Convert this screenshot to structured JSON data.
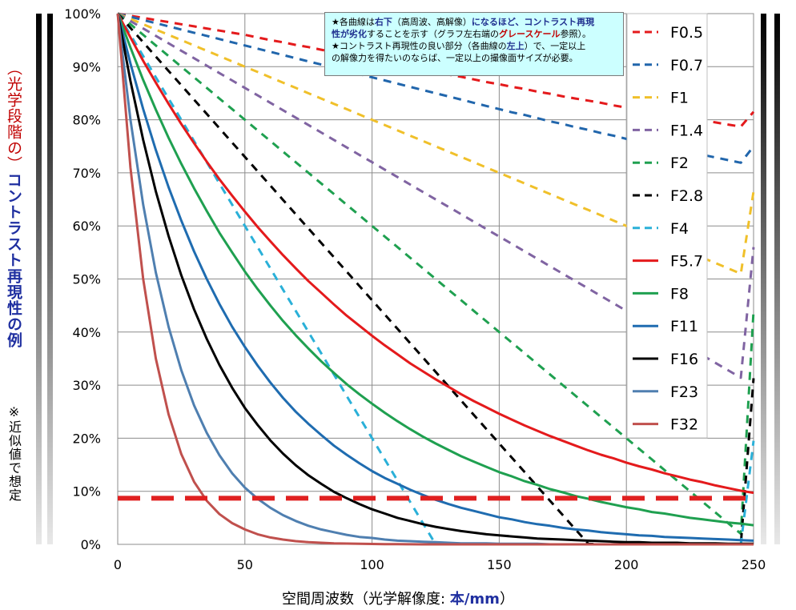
{
  "chart_data": {
    "type": "line",
    "title": "",
    "xlabel_main": "空間周波数",
    "xlabel_paren_open": "（光学解像度: ",
    "xlabel_unit": "本/mm",
    "xlabel_paren_close": "）",
    "ylabel_red": "（光学段階の）",
    "ylabel_blue": "コントラスト再現性の例",
    "ylabel_note": "※近似値で想定",
    "xlim": [
      0,
      250
    ],
    "ylim": [
      0,
      100
    ],
    "x_ticks": [
      "0",
      "50",
      "100",
      "150",
      "200",
      "250"
    ],
    "y_ticks": [
      "0%",
      "10%",
      "20%",
      "30%",
      "40%",
      "50%",
      "60%",
      "70%",
      "80%",
      "90%",
      "100%"
    ],
    "grid": true,
    "legend_position": "right",
    "threshold": {
      "y": 8.7,
      "color": "#e02020"
    },
    "note": {
      "line1_a": "★各曲線は",
      "line1_b": "右下",
      "line1_c": "（高周波、高解像）",
      "line1_d": "になるほど、コントラスト再現",
      "line2_a": "性が劣化",
      "line2_b": "することを示す（グラフ左右端の",
      "line2_c": "グレースケール",
      "line2_d": "参照）。",
      "line3_a": "★コントラスト再現性の良い部分（各曲線の",
      "line3_b": "左上",
      "line3_c": "）で、一定以上",
      "line4": "の解像力を得たいのならば、一定以上の撮像面サイズが必要。"
    },
    "x": [
      0,
      5,
      10,
      15,
      20,
      25,
      30,
      35,
      40,
      45,
      50,
      55,
      60,
      65,
      70,
      75,
      80,
      85,
      90,
      95,
      100,
      105,
      110,
      115,
      120,
      125,
      130,
      135,
      140,
      145,
      150,
      155,
      160,
      165,
      170,
      175,
      180,
      185,
      190,
      195,
      200,
      205,
      210,
      215,
      220,
      225,
      230,
      235,
      240,
      245,
      250
    ],
    "series": [
      {
        "name": "F0.5",
        "color": "#e41a1c",
        "dash": true,
        "values": [
          100,
          99.6,
          99.2,
          98.8,
          98.4,
          98.0,
          97.6,
          97.2,
          96.8,
          96.4,
          96.0,
          95.5,
          95.0,
          94.6,
          94.1,
          93.7,
          93.2,
          92.7,
          92.3,
          91.8,
          91.3,
          90.9,
          90.4,
          89.9,
          89.4,
          89.0,
          88.5,
          88.1,
          87.6,
          87.1,
          86.7,
          86.2,
          85.8,
          85.3,
          84.9,
          84.4,
          84.0,
          83.6,
          83.2,
          82.7,
          82.3,
          81.9,
          81.5,
          81.1,
          80.7,
          80.3,
          79.9,
          79.5,
          79.1,
          78.7,
          81.5
        ]
      },
      {
        "name": "F0.7",
        "color": "#2166ac",
        "dash": true,
        "values": [
          100,
          99.4,
          98.8,
          98.2,
          97.6,
          97.0,
          96.4,
          95.8,
          95.2,
          94.6,
          94.0,
          93.4,
          92.8,
          92.2,
          91.6,
          91.0,
          90.4,
          89.8,
          89.2,
          88.6,
          88.0,
          87.4,
          86.8,
          86.2,
          85.6,
          85.0,
          84.4,
          83.8,
          83.2,
          82.6,
          82.0,
          81.4,
          80.9,
          80.3,
          79.7,
          79.2,
          78.6,
          78.1,
          77.5,
          77.0,
          76.4,
          75.9,
          75.4,
          74.9,
          74.4,
          73.9,
          73.4,
          72.9,
          72.4,
          71.9,
          75.0
        ]
      },
      {
        "name": "F1",
        "color": "#f0c02a",
        "dash": true,
        "values": [
          100,
          99.0,
          98.0,
          97.0,
          96.0,
          95.0,
          94.0,
          93.0,
          92.0,
          91.0,
          90.0,
          89.0,
          88.0,
          87.0,
          86.0,
          85.0,
          84.0,
          83.0,
          82.0,
          81.0,
          80.0,
          79.0,
          78.0,
          77.0,
          76.0,
          75.0,
          74.0,
          73.0,
          72.0,
          71.0,
          70.0,
          69.0,
          68.0,
          67.0,
          66.0,
          65.0,
          64.0,
          63.0,
          62.0,
          61.0,
          60.0,
          59.0,
          58.0,
          57.0,
          56.0,
          55.0,
          54.0,
          53.0,
          52.0,
          51.0,
          66.5
        ]
      },
      {
        "name": "F1.4",
        "color": "#8064a2",
        "dash": true,
        "values": [
          100,
          98.6,
          97.2,
          95.8,
          94.4,
          93.0,
          91.6,
          90.2,
          88.8,
          87.4,
          86.0,
          84.6,
          83.2,
          81.8,
          80.4,
          79.0,
          77.6,
          76.2,
          74.8,
          73.4,
          72.0,
          70.6,
          69.2,
          67.8,
          66.4,
          65.0,
          63.6,
          62.2,
          60.8,
          59.4,
          58.0,
          56.6,
          55.2,
          53.8,
          52.4,
          51.0,
          49.6,
          48.2,
          46.8,
          45.4,
          44.0,
          42.6,
          41.2,
          39.8,
          38.4,
          37.0,
          35.6,
          34.2,
          32.8,
          31.4,
          56.0
        ]
      },
      {
        "name": "F2",
        "color": "#1fa050",
        "dash": true,
        "values": [
          100,
          98.0,
          96.0,
          94.0,
          92.0,
          90.0,
          88.0,
          86.0,
          84.0,
          82.0,
          80.0,
          78.0,
          76.0,
          74.0,
          72.0,
          70.0,
          68.0,
          66.0,
          64.0,
          62.0,
          60.0,
          58.0,
          56.0,
          54.0,
          52.0,
          50.0,
          48.0,
          46.0,
          44.0,
          42.0,
          40.0,
          38.0,
          36.0,
          34.0,
          32.0,
          30.0,
          28.0,
          26.0,
          24.0,
          22.0,
          20.0,
          18.0,
          16.0,
          14.0,
          12.0,
          10.0,
          8.0,
          6.0,
          4.0,
          2.0,
          44.0
        ]
      },
      {
        "name": "F2.8",
        "color": "#000000",
        "dash": true,
        "values": [
          100,
          97.3,
          94.6,
          91.9,
          89.2,
          86.5,
          83.8,
          81.1,
          78.4,
          75.7,
          73.0,
          70.3,
          67.6,
          64.9,
          62.2,
          59.5,
          56.8,
          54.1,
          51.4,
          48.7,
          46.0,
          43.3,
          40.6,
          37.9,
          35.2,
          32.5,
          29.8,
          27.1,
          24.4,
          21.7,
          19.0,
          16.3,
          13.6,
          10.9,
          8.2,
          5.5,
          2.8,
          0.1,
          0.0,
          0.0,
          0.0,
          0.0,
          0.0,
          0.0,
          0.0,
          0.0,
          0.0,
          0.0,
          0.0,
          0.0,
          31.3
        ]
      },
      {
        "name": "F4",
        "color": "#2ab0d8",
        "dash": true,
        "values": [
          100,
          96.0,
          92.0,
          88.0,
          84.0,
          80.0,
          76.0,
          72.0,
          68.0,
          64.0,
          60.0,
          56.0,
          52.0,
          48.0,
          44.0,
          40.0,
          36.0,
          32.0,
          28.0,
          24.0,
          20.0,
          16.0,
          12.0,
          8.0,
          4.0,
          0.0,
          0.0,
          0.0,
          0.0,
          0.0,
          0.0,
          0.0,
          0.0,
          0.0,
          0.0,
          0.0,
          0.0,
          0.0,
          0.0,
          0.0,
          0.0,
          0.0,
          0.0,
          0.0,
          0.0,
          0.0,
          0.0,
          0.0,
          0.0,
          0.0,
          19.5
        ]
      },
      {
        "name": "F5.7",
        "color": "#e41a1c",
        "dash": false,
        "values": [
          100,
          95.5,
          91.1,
          87.0,
          83.0,
          79.2,
          75.6,
          72.1,
          68.8,
          65.7,
          62.7,
          59.8,
          57.1,
          54.5,
          52.0,
          49.6,
          47.4,
          45.2,
          43.1,
          41.2,
          39.3,
          37.5,
          35.8,
          34.1,
          32.6,
          31.1,
          29.7,
          28.3,
          27.0,
          25.8,
          24.6,
          23.5,
          22.4,
          21.4,
          20.4,
          19.5,
          18.6,
          17.7,
          16.9,
          16.2,
          15.4,
          14.7,
          14.1,
          13.4,
          12.8,
          12.2,
          11.7,
          11.1,
          10.6,
          10.1,
          9.7
        ]
      },
      {
        "name": "F8",
        "color": "#1fa050",
        "dash": false,
        "values": [
          100,
          93.6,
          87.5,
          81.9,
          76.6,
          71.7,
          67.1,
          62.8,
          58.7,
          55.0,
          51.4,
          48.1,
          45.0,
          42.1,
          39.4,
          36.9,
          34.5,
          32.3,
          30.2,
          28.3,
          26.5,
          24.8,
          23.2,
          21.7,
          20.3,
          19.0,
          17.8,
          16.6,
          15.6,
          14.6,
          13.6,
          12.8,
          11.9,
          11.2,
          10.4,
          9.8,
          9.1,
          8.6,
          8.0,
          7.5,
          7.0,
          6.6,
          6.1,
          5.8,
          5.4,
          5.0,
          4.7,
          4.4,
          4.1,
          3.9,
          3.6
        ]
      },
      {
        "name": "F11",
        "color": "#1f6cb0",
        "dash": false,
        "values": [
          100,
          90.6,
          82.0,
          74.3,
          67.3,
          61.0,
          55.2,
          50.0,
          45.3,
          41.0,
          37.2,
          33.7,
          30.5,
          27.6,
          25.0,
          22.7,
          20.6,
          18.6,
          16.9,
          15.3,
          13.8,
          12.5,
          11.4,
          10.3,
          9.3,
          8.4,
          7.6,
          6.9,
          6.3,
          5.7,
          5.1,
          4.7,
          4.2,
          3.8,
          3.5,
          3.1,
          2.8,
          2.6,
          2.3,
          2.1,
          1.9,
          1.7,
          1.6,
          1.4,
          1.3,
          1.2,
          1.1,
          1.0,
          0.9,
          0.8,
          0.7
        ]
      },
      {
        "name": "F16",
        "color": "#000000",
        "dash": false,
        "values": [
          100,
          87.3,
          76.2,
          66.5,
          58.1,
          50.7,
          44.3,
          38.7,
          33.8,
          29.5,
          25.7,
          22.5,
          19.6,
          17.1,
          14.9,
          13.0,
          11.4,
          9.9,
          8.7,
          7.6,
          6.6,
          5.8,
          5.0,
          4.4,
          3.8,
          3.3,
          2.9,
          2.5,
          2.2,
          1.9,
          1.7,
          1.5,
          1.3,
          1.1,
          1.0,
          0.9,
          0.8,
          0.7,
          0.6,
          0.5,
          0.4,
          0.4,
          0.3,
          0.3,
          0.3,
          0.2,
          0.2,
          0.2,
          0.1,
          0.1,
          0.1
        ]
      },
      {
        "name": "F23",
        "color": "#4f7fb0",
        "dash": false,
        "values": [
          100,
          80.0,
          64.0,
          51.2,
          41.0,
          32.8,
          26.2,
          21.0,
          16.8,
          13.4,
          10.7,
          8.6,
          6.9,
          5.5,
          4.4,
          3.5,
          2.8,
          2.3,
          1.8,
          1.4,
          1.2,
          0.9,
          0.7,
          0.6,
          0.5,
          0.4,
          0.3,
          0.2,
          0.2,
          0.2,
          0.1,
          0.1,
          0.1,
          0.1,
          0.0,
          0.0,
          0.0,
          0.0,
          0.0,
          0.0,
          0.0,
          0.0,
          0.0,
          0.0,
          0.0,
          0.0,
          0.0,
          0.0,
          0.0,
          0.0,
          0.0
        ]
      },
      {
        "name": "F32",
        "color": "#c0504d",
        "dash": false,
        "values": [
          100,
          71.0,
          50.0,
          35.0,
          24.5,
          17.0,
          11.8,
          8.2,
          5.7,
          4.0,
          2.8,
          1.9,
          1.3,
          0.9,
          0.6,
          0.4,
          0.3,
          0.2,
          0.15,
          0.1,
          0.07,
          0.05,
          0.03,
          0.02,
          0.0,
          0.0,
          0.0,
          0.0,
          0.0,
          0.0,
          0.0,
          0.0,
          0.0,
          0.0,
          0.0,
          0.0,
          0.0,
          0.0,
          0.0,
          0.0,
          0.0,
          0.0,
          0.0,
          0.0,
          0.0,
          0.0,
          0.0,
          0.0,
          0.0,
          0.0,
          0.0
        ]
      }
    ]
  }
}
